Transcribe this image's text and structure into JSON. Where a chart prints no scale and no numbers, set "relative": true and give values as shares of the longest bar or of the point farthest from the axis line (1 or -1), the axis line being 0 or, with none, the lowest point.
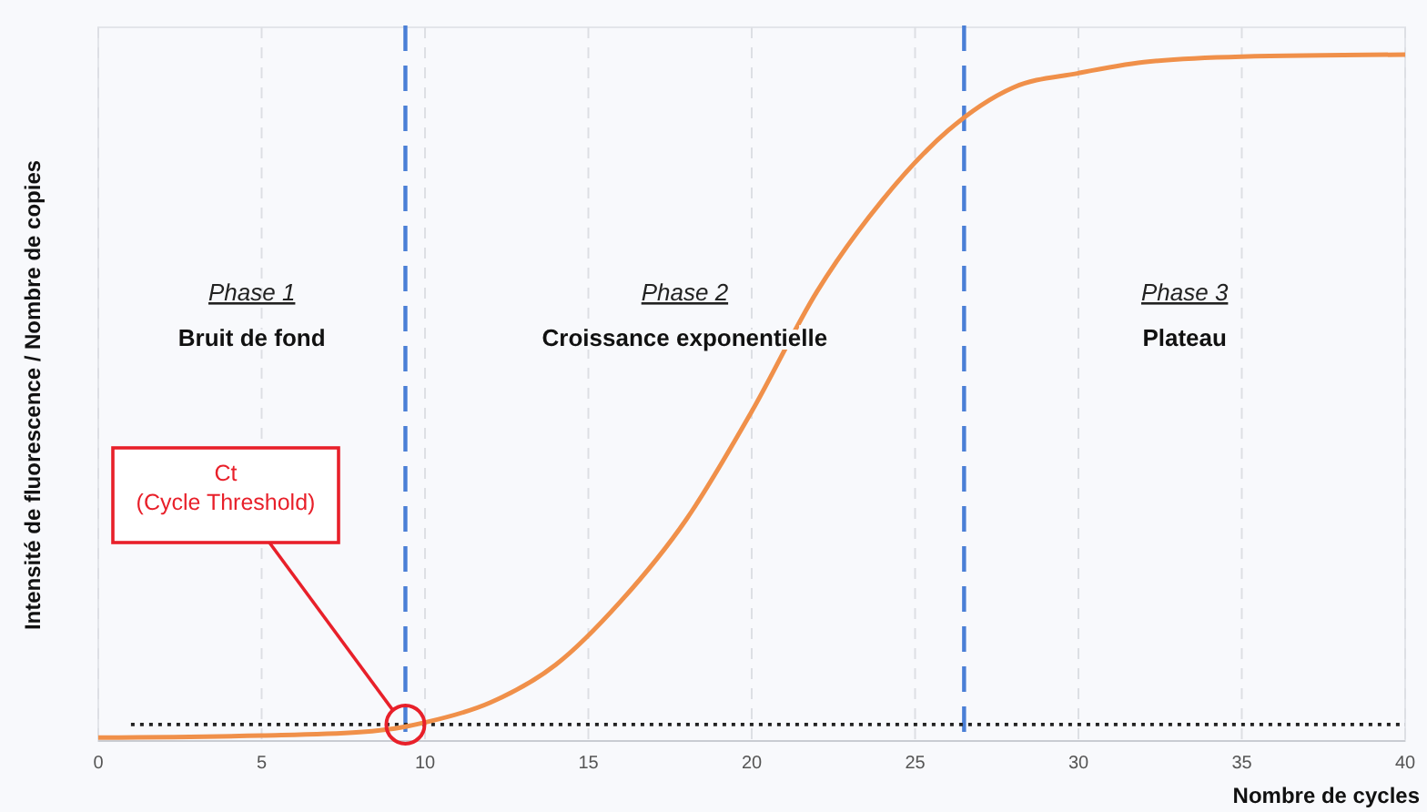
{
  "chart_data": {
    "type": "line",
    "relative": true,
    "xlabel": "Nombre de cycles",
    "ylabel": "Intensité de fluorescence / Nombre de copies",
    "x": [
      0,
      5,
      8,
      9.4,
      10,
      12,
      14,
      16,
      18,
      20,
      22,
      24,
      26,
      28,
      30,
      32,
      35,
      40
    ],
    "xlim": [
      0,
      40
    ],
    "xticks": [
      0,
      5,
      10,
      15,
      20,
      25,
      30,
      35,
      40
    ],
    "grid": "x",
    "marker": "none",
    "line_style": "solid",
    "series": [
      {
        "color": "#f0904a",
        "values": [
          0.005,
          0.008,
          0.013,
          0.021,
          0.027,
          0.056,
          0.111,
          0.204,
          0.323,
          0.48,
          0.655,
          0.788,
          0.889,
          0.952,
          0.973,
          0.989,
          0.997,
          1
        ]
      }
    ],
    "ref_lines": [
      {
        "axis": "x",
        "value": 9.4,
        "color": "#4a7fd6",
        "line_style": "dashed"
      },
      {
        "axis": "x",
        "value": 26.5,
        "color": "#4a7fd6",
        "line_style": "dashed"
      },
      {
        "axis": "y",
        "value": 0.024,
        "color": "#222222",
        "line_style": "dotted"
      }
    ],
    "annotations": [
      "Phase 1",
      "Bruit de fond",
      "Phase 2",
      "Croissance exponentielle",
      "Phase 3",
      "Plateau",
      "Ct\n(Cycle Threshold)"
    ]
  }
}
